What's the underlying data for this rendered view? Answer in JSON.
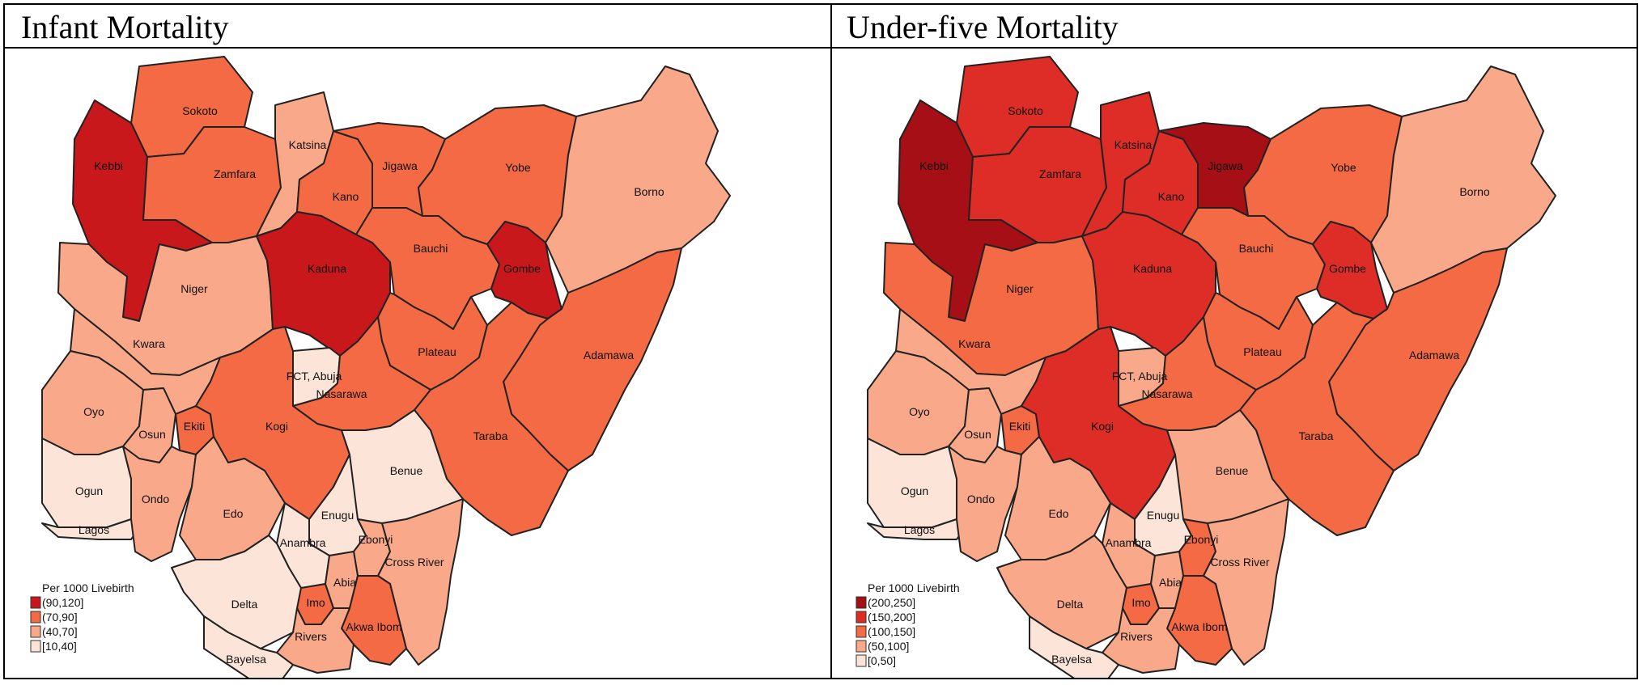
{
  "panels": [
    {
      "title": "Infant Mortality",
      "legend": {
        "title": "Per 1000 Livebirth",
        "classes": [
          {
            "label": "(90,120]",
            "color": "#c8181c"
          },
          {
            "label": "(70,90]",
            "color": "#f36a44"
          },
          {
            "label": "(40,70]",
            "color": "#f9a98a"
          },
          {
            "label": "[10,40]",
            "color": "#fde4d8"
          }
        ]
      },
      "states": {
        "Sokoto": 1,
        "Kebbi": 0,
        "Zamfara": 1,
        "Katsina": 2,
        "Kano": 1,
        "Jigawa": 1,
        "Yobe": 1,
        "Borno": 2,
        "Niger": 2,
        "Kaduna": 0,
        "Bauchi": 1,
        "Gombe": 0,
        "Kwara": 2,
        "FCT, Abuja": 3,
        "Plateau": 1,
        "Adamawa": 1,
        "Nasarawa": 1,
        "Taraba": 1,
        "Oyo": 2,
        "Osun": 2,
        "Ekiti": 1,
        "Kogi": 1,
        "Benue": 3,
        "Ogun": 3,
        "Lagos": 3,
        "Ondo": 2,
        "Edo": 2,
        "Enugu": 3,
        "Ebonyi": 2,
        "Anambra": 3,
        "Delta": 3,
        "Cross River": 2,
        "Imo": 1,
        "Abia": 2,
        "Akwa Ibom": 1,
        "Rivers": 2,
        "Bayelsa": 3
      }
    },
    {
      "title": "Under-five Mortality",
      "legend": {
        "title": "Per 1000 Livebirth",
        "classes": [
          {
            "label": "(200,250]",
            "color": "#a50f15"
          },
          {
            "label": "(150,200]",
            "color": "#de2d26"
          },
          {
            "label": "(100,150]",
            "color": "#f36a44"
          },
          {
            "label": "(50,100]",
            "color": "#f9a98a"
          },
          {
            "label": "[0,50]",
            "color": "#fde4d8"
          }
        ]
      },
      "states": {
        "Sokoto": 1,
        "Kebbi": 0,
        "Zamfara": 1,
        "Katsina": 1,
        "Kano": 1,
        "Jigawa": 0,
        "Yobe": 2,
        "Borno": 3,
        "Niger": 2,
        "Kaduna": 1,
        "Bauchi": 2,
        "Gombe": 1,
        "Kwara": 3,
        "FCT, Abuja": 3,
        "Plateau": 2,
        "Adamawa": 2,
        "Nasarawa": 2,
        "Taraba": 2,
        "Oyo": 3,
        "Osun": 3,
        "Ekiti": 2,
        "Kogi": 1,
        "Benue": 3,
        "Ogun": 4,
        "Lagos": 4,
        "Ondo": 3,
        "Edo": 3,
        "Enugu": 4,
        "Ebonyi": 2,
        "Anambra": 3,
        "Delta": 3,
        "Cross River": 3,
        "Imo": 2,
        "Abia": 3,
        "Akwa Ibom": 2,
        "Rivers": 3,
        "Bayelsa": 4
      }
    }
  ]
}
